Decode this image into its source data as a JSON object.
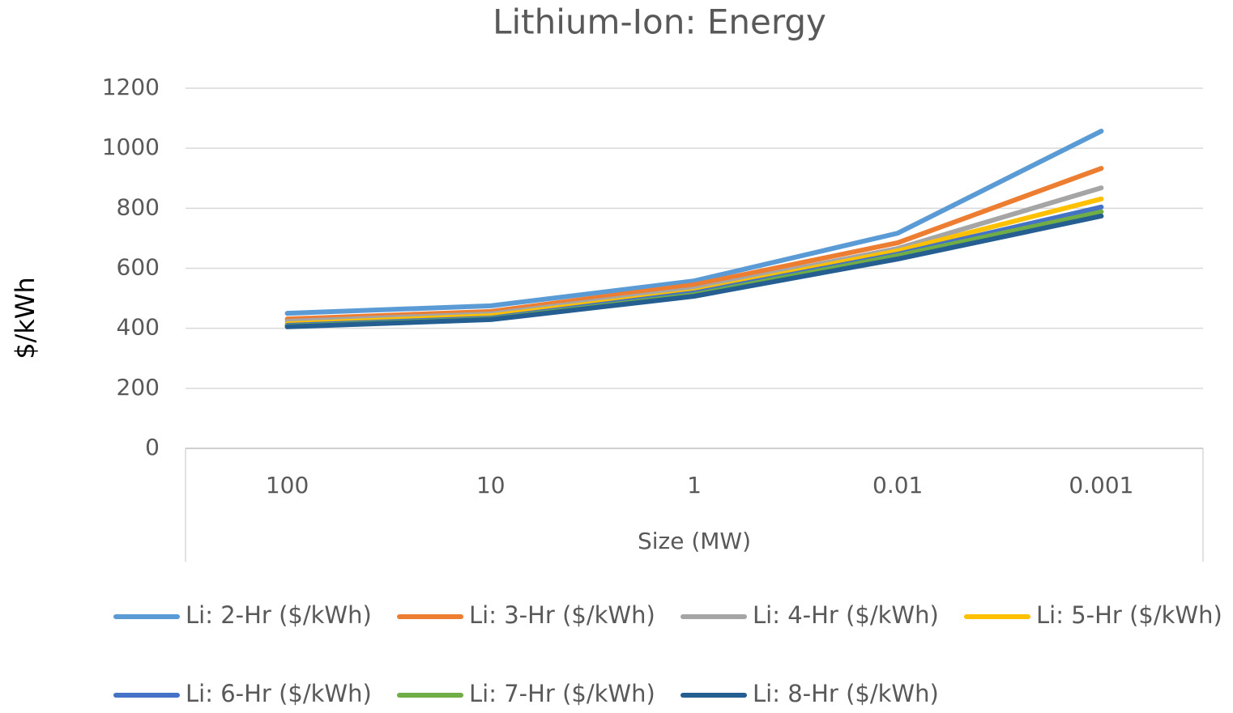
{
  "chart_data": {
    "type": "line",
    "title": "Lithium-Ion: Energy",
    "x_label": "Size (MW)",
    "y_label": "$/kWh",
    "categories": [
      "100",
      "10",
      "1",
      "0.01",
      "0.001"
    ],
    "series": [
      {
        "name": "Li: 2-Hr ($/kWh)",
        "color": "#5b9bd5",
        "values": [
          450,
          475,
          558,
          717,
          1057
        ]
      },
      {
        "name": "Li: 3-Hr ($/kWh)",
        "color": "#ed7d31",
        "values": [
          431,
          456,
          545,
          685,
          933
        ]
      },
      {
        "name": "Li: 4-Hr ($/kWh)",
        "color": "#a5a5a5",
        "values": [
          423,
          448,
          531,
          666,
          868
        ]
      },
      {
        "name": "Li: 5-Hr ($/kWh)",
        "color": "#ffc000",
        "values": [
          415,
          442,
          523,
          658,
          831
        ]
      },
      {
        "name": "Li: 6-Hr ($/kWh)",
        "color": "#4472c4",
        "values": [
          410,
          434,
          518,
          647,
          804
        ]
      },
      {
        "name": "Li: 7-Hr ($/kWh)",
        "color": "#70ad47",
        "values": [
          407,
          431,
          512,
          642,
          788
        ]
      },
      {
        "name": "Li: 8-Hr ($/kWh)",
        "color": "#255e91",
        "values": [
          405,
          429,
          507,
          631,
          774
        ]
      }
    ],
    "ylim": [
      0,
      1200
    ],
    "yticks": [
      0,
      200,
      400,
      600,
      800,
      1000,
      1200
    ],
    "grid": true,
    "legend": "bottom"
  }
}
